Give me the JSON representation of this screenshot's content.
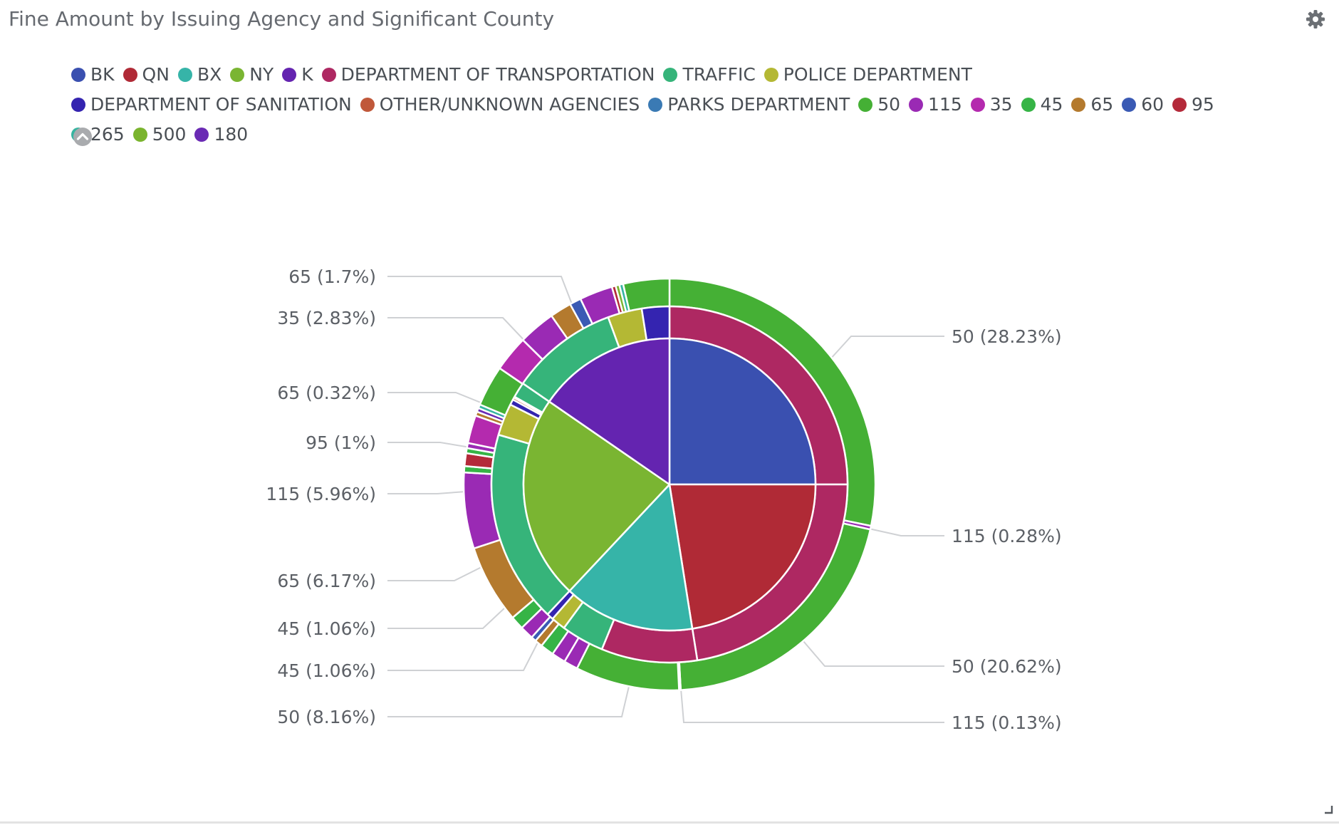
{
  "panel": {
    "title": "Fine Amount by Issuing Agency and Significant County"
  },
  "icons": {
    "settings": "gear-icon",
    "legend_toggle": "chevron-up-circle-icon",
    "resize": "resize-corner-icon"
  },
  "chart_data": {
    "type": "pie",
    "subtype": "multi-level sunburst (county / issuing agency / fine amount)",
    "title": "Fine Amount by Issuing Agency and Significant County",
    "legend": {
      "placement": "top",
      "entries": [
        {
          "label": "BK",
          "color": "#3a50b0"
        },
        {
          "label": "QN",
          "color": "#b02a36"
        },
        {
          "label": "BX",
          "color": "#36b4a8"
        },
        {
          "label": "NY",
          "color": "#7ab532"
        },
        {
          "label": "K",
          "color": "#6424b0"
        },
        {
          "label": "DEPARTMENT OF TRANSPORTATION",
          "color": "#ae2862"
        },
        {
          "label": "TRAFFIC",
          "color": "#36b47a"
        },
        {
          "label": "POLICE DEPARTMENT",
          "color": "#b4b834"
        },
        {
          "label": "DEPARTMENT OF SANITATION",
          "color": "#3424b0"
        },
        {
          "label": "OTHER/UNKNOWN AGENCIES",
          "color": "#c0583a"
        },
        {
          "label": "PARKS DEPARTMENT",
          "color": "#3a7ab4"
        },
        {
          "label": "50",
          "color": "#45b035"
        },
        {
          "label": "115",
          "color": "#9a2ab4"
        },
        {
          "label": "35",
          "color": "#b42aae"
        },
        {
          "label": "45",
          "color": "#36b446"
        },
        {
          "label": "65",
          "color": "#b47a2e"
        },
        {
          "label": "60",
          "color": "#3a5ab4"
        },
        {
          "label": "95",
          "color": "#b42a3a"
        },
        {
          "label": "265",
          "color": "#36b4a0"
        },
        {
          "label": "500",
          "color": "#7ab42e"
        },
        {
          "label": "180",
          "color": "#6a2ab4"
        }
      ]
    },
    "levels": {
      "county": [
        {
          "name": "BK",
          "share": 25.0,
          "color": "#3a50b0"
        },
        {
          "name": "QN",
          "share": 22.5,
          "color": "#b02a36"
        },
        {
          "name": "BX",
          "share": 14.5,
          "color": "#36b4a8"
        },
        {
          "name": "NY",
          "share": 22.6,
          "color": "#7ab532"
        },
        {
          "name": "K",
          "share": 15.4,
          "color": "#6424b0"
        }
      ],
      "agency": [
        {
          "county": "BK",
          "name": "DEPARTMENT OF TRANSPORTATION",
          "share": 25.0,
          "color": "#ae2862"
        },
        {
          "county": "QN",
          "name": "DEPARTMENT OF TRANSPORTATION",
          "share": 22.5,
          "color": "#ae2862"
        },
        {
          "county": "BX",
          "name": "DEPARTMENT OF TRANSPORTATION",
          "share": 8.7,
          "color": "#ae2862"
        },
        {
          "county": "BX",
          "name": "TRAFFIC",
          "share": 3.9,
          "color": "#36b47a"
        },
        {
          "county": "BX",
          "name": "POLICE DEPARTMENT",
          "share": 1.3,
          "color": "#b4b834"
        },
        {
          "county": "BX",
          "name": "DEPARTMENT OF SANITATION",
          "share": 0.6,
          "color": "#3424b0"
        },
        {
          "county": "NY",
          "name": "TRAFFIC",
          "share": 17.5,
          "color": "#36b47a"
        },
        {
          "county": "NY",
          "name": "POLICE DEPARTMENT",
          "share": 2.9,
          "color": "#b4b834"
        },
        {
          "county": "NY",
          "name": "DEPARTMENT OF SANITATION",
          "share": 0.5,
          "color": "#3424b0"
        },
        {
          "county": "NY",
          "name": "OTHER/UNKNOWN AGENCIES",
          "share": 0.2,
          "color": "#c0583a"
        },
        {
          "county": "NY",
          "name": "PARKS DEPARTMENT",
          "share": 0.1,
          "color": "#3a7ab4"
        },
        {
          "county": "NY",
          "name": "TRAFFIC",
          "share": 1.4,
          "color": "#36b47a"
        },
        {
          "county": "K",
          "name": "TRAFFIC",
          "share": 9.8,
          "color": "#36b47a"
        },
        {
          "county": "K",
          "name": "POLICE DEPARTMENT",
          "share": 3.1,
          "color": "#b4b834"
        },
        {
          "county": "K",
          "name": "DEPARTMENT OF SANITATION",
          "share": 2.5,
          "color": "#3424b0"
        }
      ],
      "fine_amount": [
        {
          "name": "50",
          "pct": 28.23,
          "color": "#45b035",
          "labeled": true
        },
        {
          "name": "115",
          "pct": 0.28,
          "color": "#9a2ab4",
          "labeled": true
        },
        {
          "name": "50",
          "pct": 20.62,
          "color": "#45b035",
          "labeled": true
        },
        {
          "name": "115",
          "pct": 0.13,
          "color": "#9a2ab4",
          "labeled": true
        },
        {
          "name": "50",
          "pct": 8.16,
          "color": "#45b035",
          "labeled": true
        },
        {
          "name": "115",
          "pct": 1.1,
          "color": "#9a2ab4"
        },
        {
          "name": "115",
          "pct": 1.1,
          "color": "#9a2ab4"
        },
        {
          "name": "45",
          "pct": 1.06,
          "color": "#36b446",
          "labeled": true
        },
        {
          "name": "65",
          "pct": 0.6,
          "color": "#b47a2e"
        },
        {
          "name": "60",
          "pct": 0.4,
          "color": "#3a5ab4"
        },
        {
          "name": "115",
          "pct": 1.06,
          "color": "#9a2ab4"
        },
        {
          "name": "45",
          "pct": 1.06,
          "color": "#36b446",
          "labeled": true
        },
        {
          "name": "65",
          "pct": 6.17,
          "color": "#b47a2e",
          "labeled": true
        },
        {
          "name": "115",
          "pct": 5.96,
          "color": "#9a2ab4",
          "labeled": true
        },
        {
          "name": "45",
          "pct": 0.5,
          "color": "#36b446"
        },
        {
          "name": "95",
          "pct": 1.0,
          "color": "#b42a3a",
          "labeled": true
        },
        {
          "name": "45",
          "pct": 0.4,
          "color": "#36b446"
        },
        {
          "name": "115",
          "pct": 0.4,
          "color": "#9a2ab4"
        },
        {
          "name": "35",
          "pct": 2.2,
          "color": "#b42aae"
        },
        {
          "name": "65",
          "pct": 0.32,
          "color": "#b47a2e",
          "labeled": true
        },
        {
          "name": "180",
          "pct": 0.3,
          "color": "#6a2ab4"
        },
        {
          "name": "265",
          "pct": 0.3,
          "color": "#36b4a0"
        },
        {
          "name": "50",
          "pct": 3.2,
          "color": "#45b035"
        },
        {
          "name": "35",
          "pct": 2.83,
          "color": "#b42aae",
          "labeled": true
        },
        {
          "name": "115",
          "pct": 2.9,
          "color": "#9a2ab4"
        },
        {
          "name": "65",
          "pct": 1.7,
          "color": "#b47a2e",
          "labeled": true
        },
        {
          "name": "60",
          "pct": 0.9,
          "color": "#3a5ab4"
        },
        {
          "name": "115",
          "pct": 2.6,
          "color": "#9a2ab4"
        },
        {
          "name": "95",
          "pct": 0.3,
          "color": "#b42a3a"
        },
        {
          "name": "500",
          "pct": 0.3,
          "color": "#7ab42e"
        },
        {
          "name": "265",
          "pct": 0.3,
          "color": "#36b4a0"
        },
        {
          "name": "50",
          "pct": 3.62,
          "color": "#45b035"
        }
      ]
    },
    "labels": [
      {
        "text": "50 (28.23%)",
        "side": "right"
      },
      {
        "text": "115 (0.28%)",
        "side": "right"
      },
      {
        "text": "50 (20.62%)",
        "side": "right"
      },
      {
        "text": "115 (0.13%)",
        "side": "right"
      },
      {
        "text": "65 (1.7%)",
        "side": "left"
      },
      {
        "text": "35 (2.83%)",
        "side": "left"
      },
      {
        "text": "65 (0.32%)",
        "side": "left"
      },
      {
        "text": "95 (1%)",
        "side": "left"
      },
      {
        "text": "115 (5.96%)",
        "side": "left"
      },
      {
        "text": "65 (6.17%)",
        "side": "left"
      },
      {
        "text": "45 (1.06%)",
        "side": "left"
      },
      {
        "text": "45 (1.06%)",
        "side": "left"
      },
      {
        "text": "50 (8.16%)",
        "side": "left"
      }
    ]
  }
}
